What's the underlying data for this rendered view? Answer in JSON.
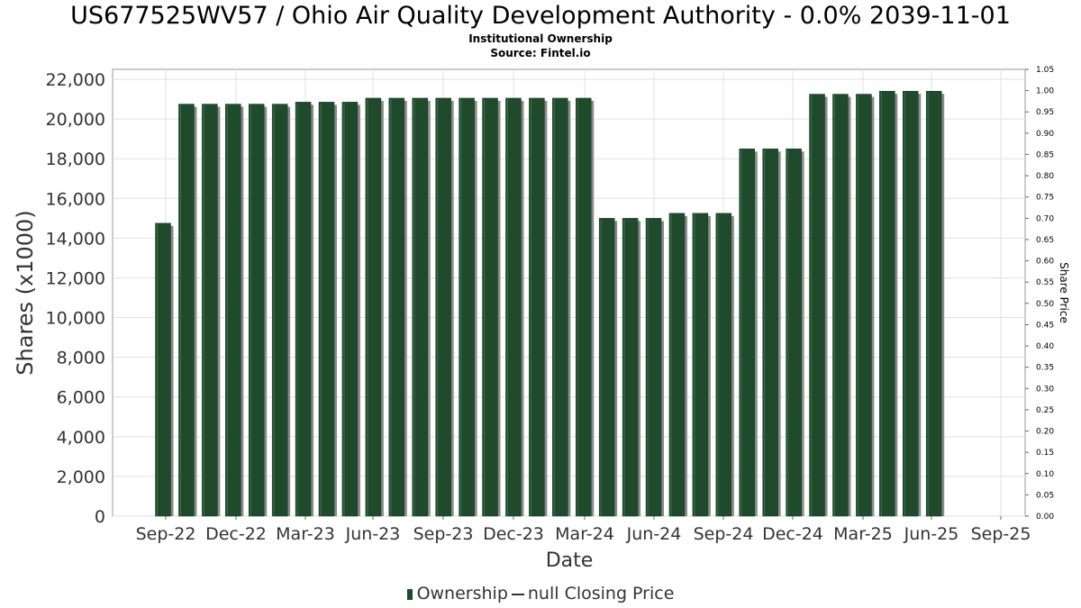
{
  "title": "US677525WV57 / Ohio Air Quality Development Authority - 0.0% 2039-11-01",
  "subtitle": "Institutional Ownership",
  "source": "Source: Fintel.io",
  "legend": {
    "ownership_label": "Ownership",
    "price_label": "null Closing Price"
  },
  "colors": {
    "bar": "#1f4a2c",
    "bar_shadow": "#8a8a8a",
    "grid": "#e0e0e0",
    "axis_text": "#333333"
  },
  "chart_data": {
    "type": "bar",
    "xlabel": "Date",
    "ylabel": "Shares (x1000)",
    "y2label": "Share Price",
    "ylim": [
      0,
      22500
    ],
    "y2lim": [
      0,
      1.05
    ],
    "yticks": [
      0,
      2000,
      4000,
      6000,
      8000,
      10000,
      12000,
      14000,
      16000,
      18000,
      20000,
      22000
    ],
    "ytick_labels": [
      "0",
      "2,000",
      "4,000",
      "6,000",
      "8,000",
      "10,000",
      "12,000",
      "14,000",
      "16,000",
      "18,000",
      "20,000",
      "22,000"
    ],
    "y2ticks": [
      "0.00",
      "0.05",
      "0.10",
      "0.15",
      "0.20",
      "0.25",
      "0.30",
      "0.35",
      "0.40",
      "0.45",
      "0.50",
      "0.55",
      "0.60",
      "0.65",
      "0.70",
      "0.75",
      "0.80",
      "0.85",
      "0.90",
      "0.95",
      "1.00",
      "1.05"
    ],
    "xticks": [
      "Sep-22",
      "Dec-22",
      "Mar-23",
      "Jun-23",
      "Sep-23",
      "Dec-23",
      "Mar-24",
      "Jun-24",
      "Sep-24",
      "Dec-24",
      "Mar-25",
      "Jun-25",
      "Sep-25"
    ],
    "grid": true,
    "legend_position": "bottom",
    "series": [
      {
        "name": "Ownership",
        "values": [
          14750,
          20750,
          20750,
          20750,
          20750,
          20750,
          20850,
          20850,
          20850,
          21050,
          21050,
          21050,
          21050,
          21050,
          21050,
          21050,
          21050,
          21050,
          21050,
          15000,
          15000,
          15000,
          15250,
          15250,
          15250,
          18500,
          18500,
          18500,
          21250,
          21250,
          21250,
          21400,
          21400,
          21400
        ]
      }
    ]
  }
}
